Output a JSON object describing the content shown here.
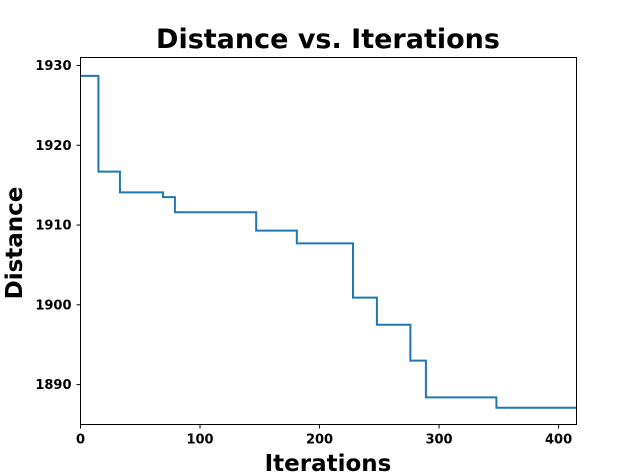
{
  "chart_data": {
    "type": "line",
    "title": "Distance vs. Iterations",
    "xlabel": "Iterations",
    "ylabel": "Distance",
    "xlim": [
      0,
      415
    ],
    "ylim": [
      1885,
      1931
    ],
    "x_ticks": [
      0,
      100,
      200,
      300,
      400
    ],
    "y_ticks": [
      1890,
      1900,
      1910,
      1920,
      1930
    ],
    "grid": false,
    "legend": "none",
    "step": "post",
    "series": [
      {
        "color": "#1f77b4",
        "x": [
          0,
          15,
          33,
          69,
          79,
          147,
          181,
          228,
          248,
          276,
          289,
          348,
          415
        ],
        "y": [
          1928.7,
          1916.7,
          1914.1,
          1913.5,
          1911.6,
          1909.3,
          1907.7,
          1900.9,
          1897.5,
          1893.0,
          1888.4,
          1887.1,
          1887.1
        ]
      }
    ]
  }
}
